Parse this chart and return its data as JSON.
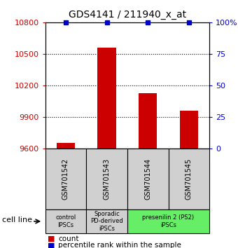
{
  "title": "GDS4141 / 211940_x_at",
  "samples": [
    "GSM701542",
    "GSM701543",
    "GSM701544",
    "GSM701545"
  ],
  "counts": [
    9655,
    10560,
    10130,
    9960
  ],
  "percentiles": [
    100,
    100,
    100,
    100
  ],
  "ylim_left": [
    9600,
    10800
  ],
  "ylim_right": [
    0,
    100
  ],
  "yticks_left": [
    9600,
    9900,
    10200,
    10500,
    10800
  ],
  "yticks_right": [
    0,
    25,
    50,
    75,
    100
  ],
  "bar_color": "#cc0000",
  "percentile_color": "#0000cc",
  "groups": [
    {
      "label": "control\nIPSCs",
      "start": 0,
      "end": 1,
      "color": "#d0d0d0"
    },
    {
      "label": "Sporadic\nPD-derived\niPSCs",
      "start": 1,
      "end": 2,
      "color": "#d0d0d0"
    },
    {
      "label": "presenilin 2 (PS2)\niPSCs",
      "start": 2,
      "end": 4,
      "color": "#66ee66"
    }
  ],
  "cell_line_label": "cell line",
  "legend_count_label": "count",
  "legend_percentile_label": "percentile rank within the sample",
  "bar_width": 0.45,
  "sample_box_color": "#d0d0d0",
  "dotted_grid_color": "#000000",
  "background_color": "#ffffff"
}
